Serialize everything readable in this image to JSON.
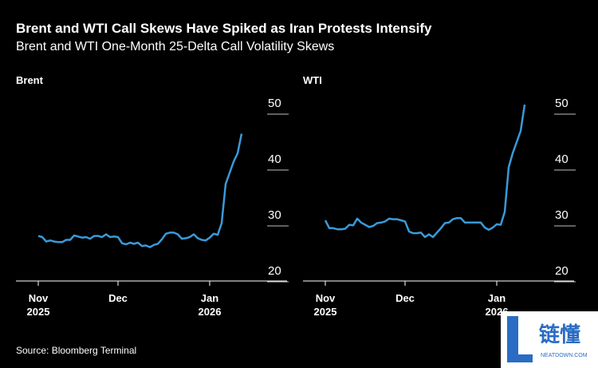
{
  "title": "Brent and WTI Call Skews Have Spiked as Iran Protests Intensify",
  "subtitle": "Brent and WTI One-Month 25-Delta Call Volatility Skews",
  "source": "Source: Bloomberg Terminal",
  "watermark": [
    "链懂",
    "NEATDOWN.COM"
  ],
  "chart_data": [
    {
      "type": "line",
      "title": "Brent",
      "color": "#3a9ad9",
      "categories": [
        "Nov 2025",
        null,
        null,
        null,
        null,
        null,
        null,
        null,
        null,
        null,
        null,
        null,
        null,
        null,
        null,
        null,
        null,
        null,
        null,
        null,
        "Dec",
        null,
        null,
        null,
        null,
        null,
        null,
        null,
        null,
        null,
        null,
        null,
        null,
        null,
        null,
        null,
        null,
        null,
        null,
        null,
        null,
        null,
        null,
        "Jan 2026",
        null,
        null,
        null,
        null,
        null,
        null,
        null,
        null
      ],
      "values": [
        28.2,
        28.0,
        27.2,
        27.4,
        27.2,
        27.1,
        27.1,
        27.5,
        27.5,
        28.3,
        28.1,
        27.9,
        28.0,
        27.7,
        28.2,
        28.2,
        28.0,
        28.5,
        28.0,
        28.1,
        28.0,
        26.9,
        26.7,
        27.0,
        26.8,
        27.0,
        26.4,
        26.5,
        26.2,
        26.6,
        26.8,
        27.6,
        28.6,
        28.8,
        28.8,
        28.5,
        27.7,
        27.8,
        28.0,
        28.5,
        27.8,
        27.5,
        27.4,
        27.9,
        28.6,
        28.4,
        30.5,
        37.5,
        39.5,
        41.5,
        43,
        46.5
      ],
      "ylim": [
        20,
        52
      ],
      "yticks": [
        20,
        30,
        40,
        50
      ]
    },
    {
      "type": "line",
      "title": "WTI",
      "color": "#3a9ad9",
      "categories": [
        "Nov 2025",
        null,
        null,
        null,
        null,
        null,
        null,
        null,
        null,
        null,
        null,
        null,
        null,
        null,
        null,
        null,
        null,
        null,
        null,
        null,
        "Dec",
        null,
        null,
        null,
        null,
        null,
        null,
        null,
        null,
        null,
        null,
        null,
        null,
        null,
        null,
        null,
        null,
        null,
        null,
        null,
        null,
        null,
        null,
        "Jan 2026",
        null,
        null,
        null,
        null,
        null,
        null,
        null
      ],
      "values": [
        31.0,
        29.6,
        29.6,
        29.4,
        29.4,
        29.5,
        30.2,
        30.1,
        31.3,
        30.6,
        30.2,
        29.8,
        30.0,
        30.5,
        30.6,
        30.8,
        31.3,
        31.2,
        31.2,
        31.0,
        30.8,
        29.0,
        28.7,
        28.7,
        28.8,
        28.0,
        28.5,
        28.0,
        28.8,
        29.6,
        30.5,
        30.6,
        31.2,
        31.4,
        31.4,
        30.6,
        30.6,
        30.6,
        30.6,
        30.6,
        29.7,
        29.3,
        29.7,
        30.3,
        30.2,
        32.5,
        40.5,
        43,
        45,
        47,
        51.7
      ],
      "ylim": [
        20,
        52
      ],
      "yticks": [
        20,
        30,
        40,
        50
      ]
    }
  ]
}
